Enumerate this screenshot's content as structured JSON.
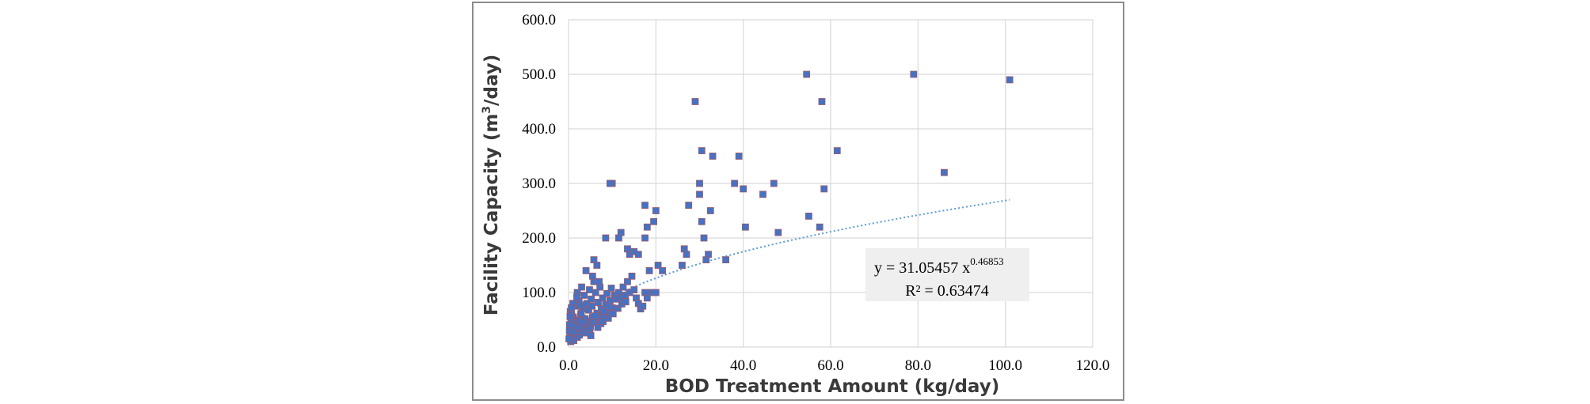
{
  "chart_data": {
    "type": "scatter",
    "xlabel": "BOD Treatment Amount (kg/day)",
    "ylabel_main": "Facility Capacity (m",
    "ylabel_sup": "3",
    "ylabel_end": "/day)",
    "xlim": [
      0,
      120
    ],
    "ylim": [
      0,
      600
    ],
    "x_ticks": [
      "0.0",
      "20.0",
      "40.0",
      "60.0",
      "80.0",
      "100.0",
      "120.0"
    ],
    "y_ticks": [
      "0.0",
      "100.0",
      "200.0",
      "300.0",
      "400.0",
      "500.0",
      "600.0"
    ],
    "grid": true,
    "marker_color": "#4472c4",
    "marker_edge": "#a05a6a",
    "trendline": {
      "type": "power",
      "a": 31.05457,
      "b": 0.46853,
      "x_range": [
        3,
        101
      ],
      "color": "#5b9bd5",
      "equation_prefix": "y = 31.05457  x",
      "equation_exponent": "0.46853",
      "r2_label": "R² = 0.63474"
    },
    "points": [
      [
        0.5,
        10
      ],
      [
        0.8,
        15
      ],
      [
        1,
        20
      ],
      [
        1.2,
        12
      ],
      [
        0.3,
        25
      ],
      [
        1.5,
        30
      ],
      [
        2,
        18
      ],
      [
        0.6,
        35
      ],
      [
        1.8,
        40
      ],
      [
        2.5,
        22
      ],
      [
        3,
        28
      ],
      [
        0.9,
        45
      ],
      [
        2.2,
        50
      ],
      [
        3.5,
        35
      ],
      [
        4,
        42
      ],
      [
        1.1,
        55
      ],
      [
        2.8,
        60
      ],
      [
        4.5,
        48
      ],
      [
        5,
        38
      ],
      [
        0.4,
        65
      ],
      [
        3.2,
        70
      ],
      [
        5.5,
        55
      ],
      [
        6,
        45
      ],
      [
        1.6,
        75
      ],
      [
        4.2,
        80
      ],
      [
        6.5,
        62
      ],
      [
        7,
        50
      ],
      [
        2.4,
        85
      ],
      [
        5.2,
        88
      ],
      [
        7.5,
        70
      ],
      [
        8,
        58
      ],
      [
        3.6,
        95
      ],
      [
        6.2,
        100
      ],
      [
        8.5,
        78
      ],
      [
        9,
        65
      ],
      [
        4.8,
        105
      ],
      [
        7.2,
        110
      ],
      [
        9.5,
        85
      ],
      [
        10,
        72
      ],
      [
        5.8,
        120
      ],
      [
        2,
        100
      ],
      [
        1,
        80
      ],
      [
        0.7,
        60
      ],
      [
        0.2,
        30
      ],
      [
        0.1,
        15
      ],
      [
        1.3,
        28
      ],
      [
        2.6,
        35
      ],
      [
        3.8,
        52
      ],
      [
        4.6,
        68
      ],
      [
        5.4,
        75
      ],
      [
        6.8,
        82
      ],
      [
        7.8,
        90
      ],
      [
        8.8,
        98
      ],
      [
        9.8,
        108
      ],
      [
        10.5,
        95
      ],
      [
        11,
        88
      ],
      [
        11.5,
        100
      ],
      [
        12,
        90
      ],
      [
        12.5,
        110
      ],
      [
        13,
        95
      ],
      [
        13.5,
        120
      ],
      [
        14,
        100
      ],
      [
        14.5,
        130
      ],
      [
        15,
        105
      ],
      [
        15.5,
        90
      ],
      [
        16,
        80
      ],
      [
        16.5,
        70
      ],
      [
        17,
        75
      ],
      [
        17.5,
        100
      ],
      [
        18,
        90
      ],
      [
        19,
        100
      ],
      [
        20,
        100
      ],
      [
        18.5,
        140
      ],
      [
        20.5,
        150
      ],
      [
        21.5,
        140
      ],
      [
        14,
        170
      ],
      [
        15,
        175
      ],
      [
        16,
        170
      ],
      [
        13.5,
        180
      ],
      [
        17.5,
        200
      ],
      [
        18,
        220
      ],
      [
        19.5,
        230
      ],
      [
        20,
        250
      ],
      [
        17.5,
        260
      ],
      [
        12,
        210
      ],
      [
        10,
        300
      ],
      [
        9.5,
        300
      ],
      [
        11.5,
        200
      ],
      [
        8.5,
        200
      ],
      [
        5.5,
        130
      ],
      [
        4,
        140
      ],
      [
        5.8,
        160
      ],
      [
        6.5,
        150
      ],
      [
        7,
        120
      ],
      [
        3,
        110
      ],
      [
        26,
        150
      ],
      [
        26.5,
        180
      ],
      [
        27,
        170
      ],
      [
        27.5,
        260
      ],
      [
        29,
        450
      ],
      [
        30,
        300
      ],
      [
        30,
        280
      ],
      [
        30.5,
        230
      ],
      [
        30.5,
        360
      ],
      [
        31,
        200
      ],
      [
        31.5,
        160
      ],
      [
        32,
        170
      ],
      [
        32.5,
        250
      ],
      [
        33,
        350
      ],
      [
        36,
        160
      ],
      [
        38,
        300
      ],
      [
        39,
        350
      ],
      [
        40,
        290
      ],
      [
        40.5,
        220
      ],
      [
        44.5,
        280
      ],
      [
        47,
        300
      ],
      [
        48,
        210
      ],
      [
        54.5,
        500
      ],
      [
        55,
        240
      ],
      [
        57.5,
        220
      ],
      [
        58,
        450
      ],
      [
        58.5,
        290
      ],
      [
        61.5,
        360
      ],
      [
        79,
        500
      ],
      [
        86,
        320
      ],
      [
        101,
        490
      ],
      [
        3.3,
        45
      ],
      [
        2.9,
        62
      ],
      [
        4.9,
        33
      ],
      [
        6.1,
        57
      ],
      [
        7.4,
        43
      ],
      [
        8.2,
        66
      ],
      [
        9.3,
        74
      ],
      [
        1.9,
        92
      ],
      [
        2.7,
        77
      ],
      [
        0.95,
        48
      ],
      [
        0.55,
        52
      ],
      [
        1.45,
        38
      ],
      [
        3.9,
        26
      ],
      [
        5.1,
        21
      ],
      [
        6.7,
        36
      ],
      [
        7.9,
        47
      ],
      [
        9.1,
        53
      ],
      [
        10.2,
        61
      ],
      [
        11.3,
        71
      ],
      [
        12.2,
        79
      ],
      [
        13.1,
        83
      ],
      [
        0.25,
        41
      ],
      [
        0.35,
        56
      ],
      [
        0.65,
        72
      ]
    ]
  }
}
